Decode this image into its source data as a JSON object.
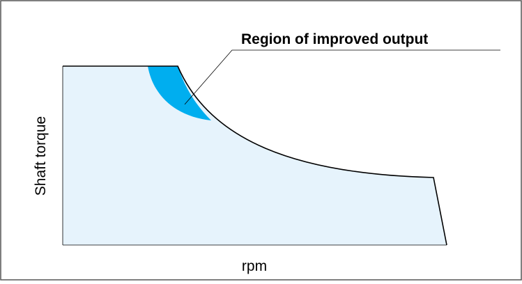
{
  "diagram": {
    "callout_label": "Region of improved output",
    "x_axis_label": "rpm",
    "y_axis_label": "Shaft torque"
  },
  "colors": {
    "background": "#ffffff",
    "frame": "#555555",
    "operating_area_fill": "#e6f3fc",
    "improved_region_fill": "#00aeef",
    "curve_stroke": "#000000",
    "label_text": "#000000"
  }
}
